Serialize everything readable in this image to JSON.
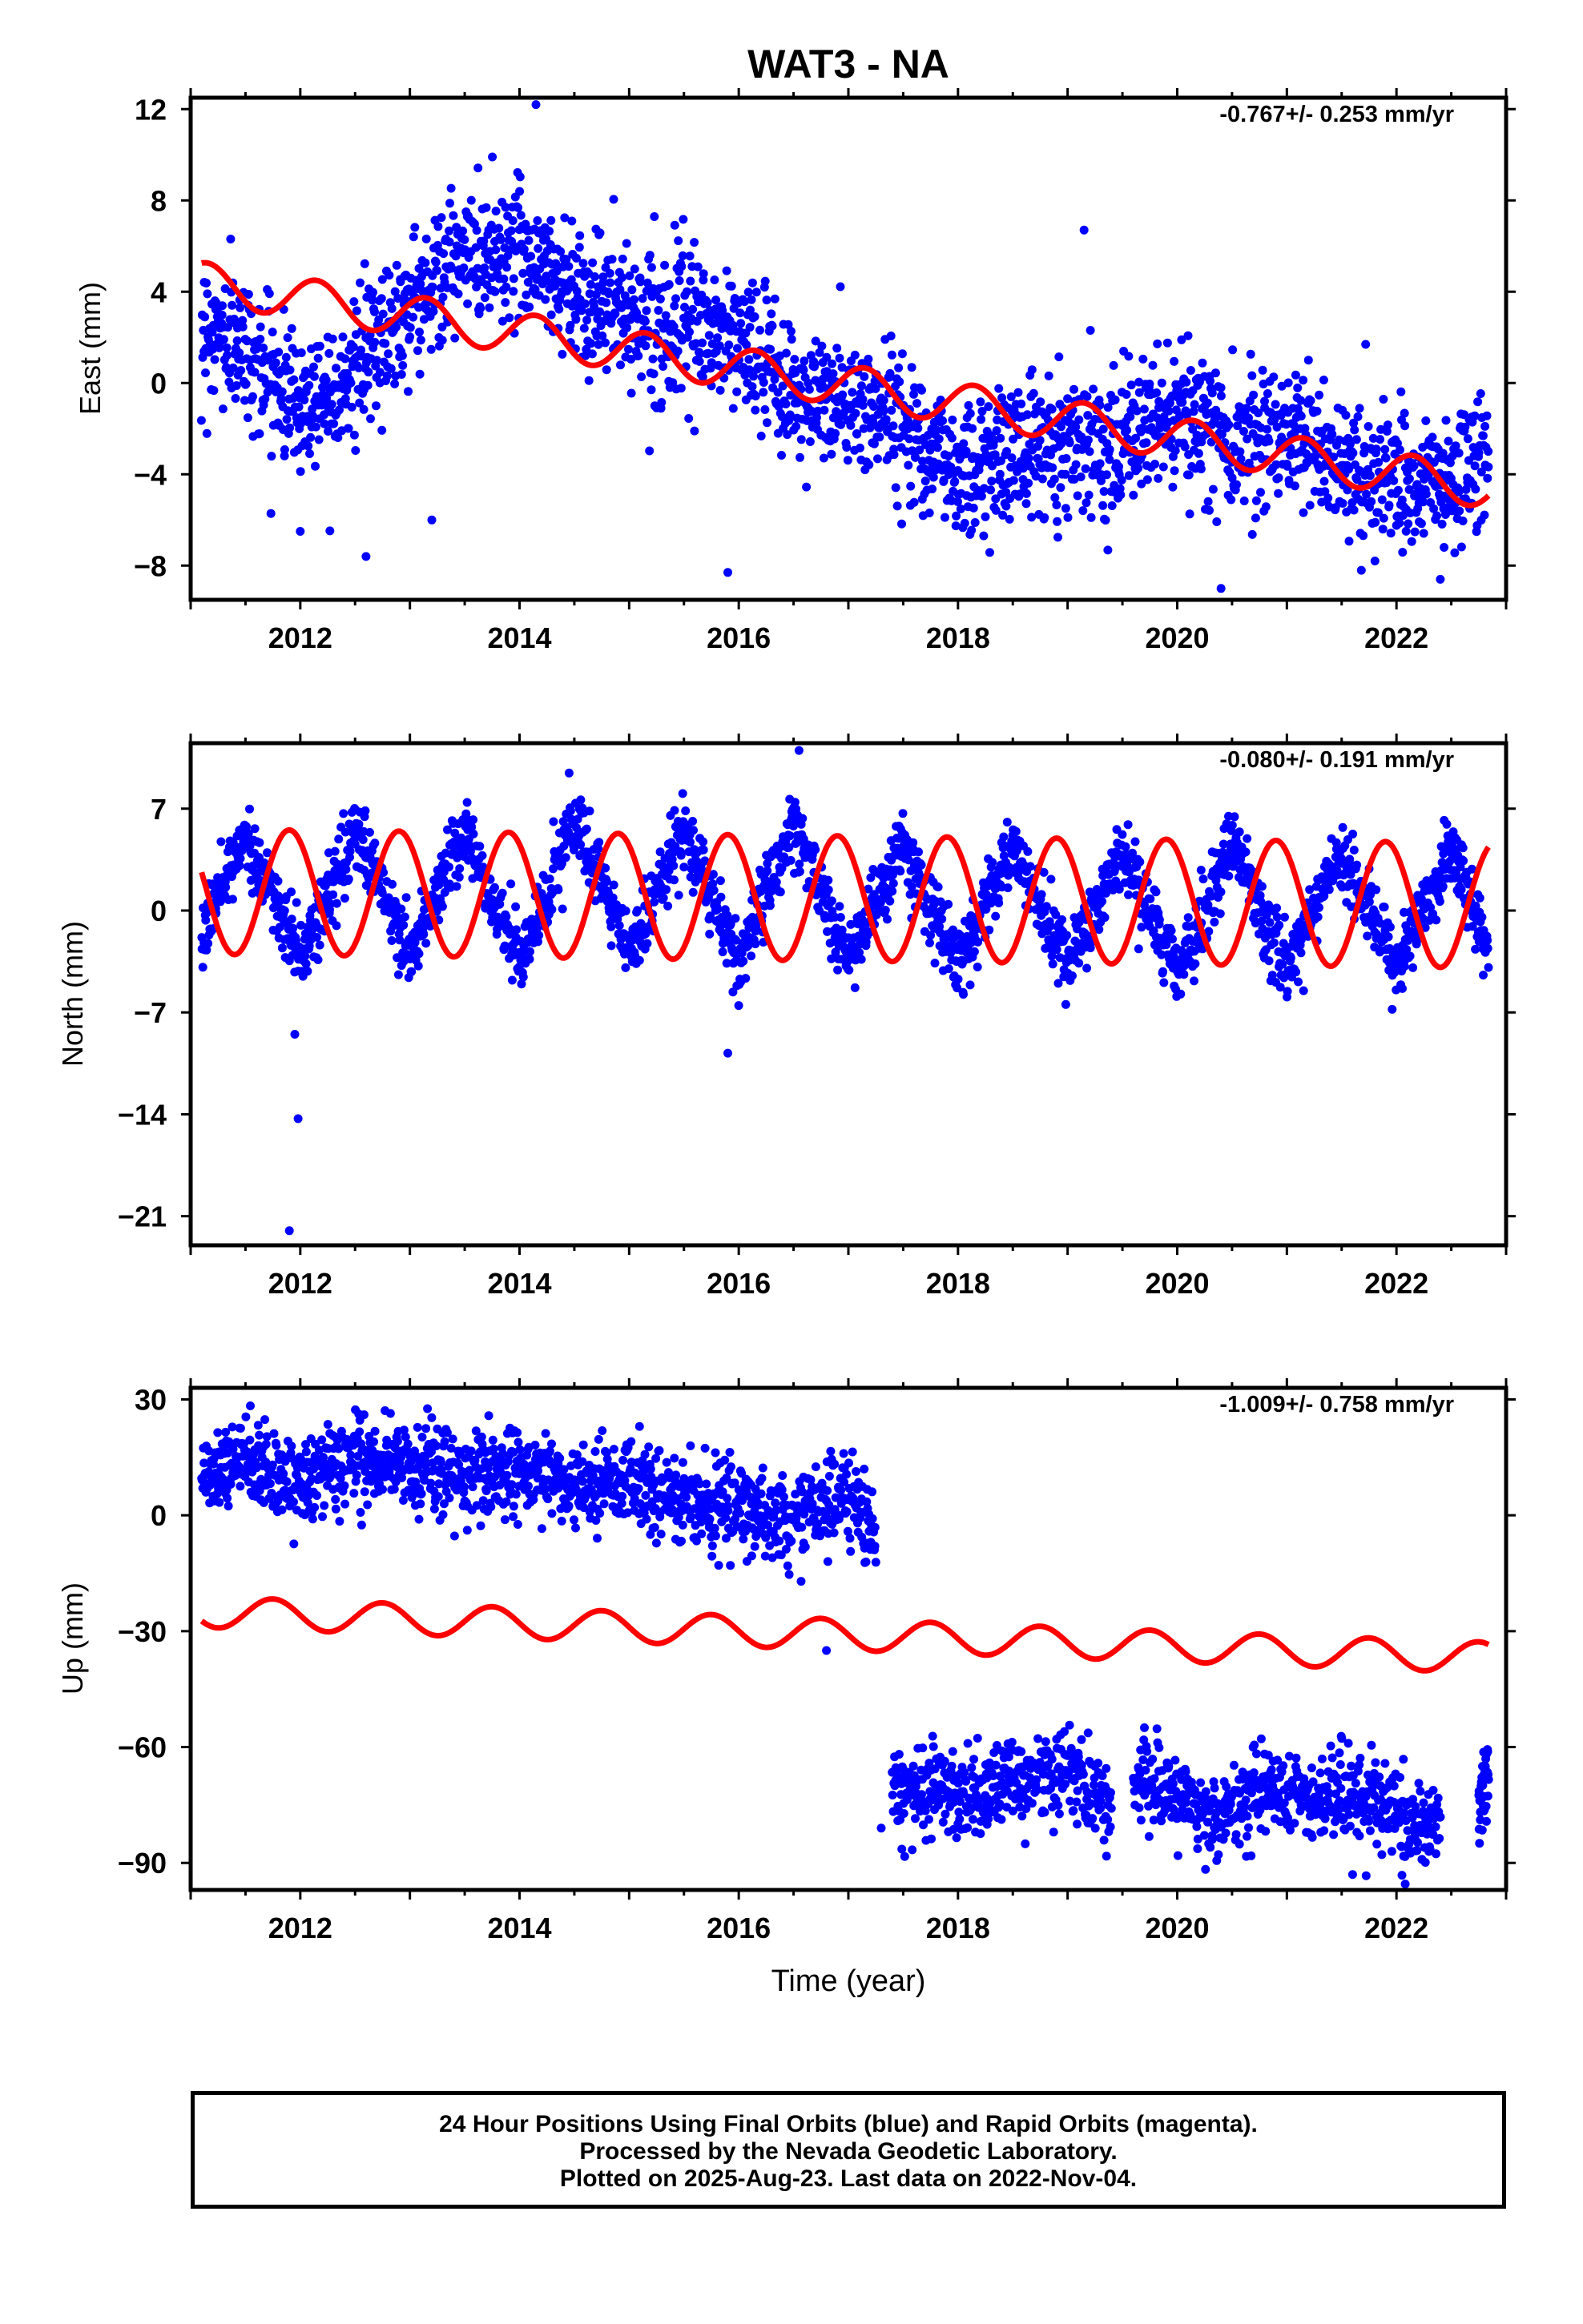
{
  "title": "WAT3 - NA",
  "colors": {
    "final_orbits": "#0000ff",
    "model_fit": "#ff0000",
    "axes": "#000000"
  },
  "caption": {
    "line1": "24 Hour Positions Using Final Orbits (blue) and Rapid Orbits (magenta).",
    "line2": "Processed by the Nevada Geodetic Laboratory.",
    "line3": "Plotted on 2025-Aug-23. Last data on 2022-Nov-04."
  },
  "chart_data": [
    {
      "type": "scatter",
      "id": "east",
      "ylabel": "East (mm)",
      "xlabel": "",
      "xlim": [
        2011.0,
        2023.0
      ],
      "ylim": [
        -9.5,
        12.5
      ],
      "x_ticks": [
        2012,
        2014,
        2016,
        2018,
        2020,
        2022
      ],
      "y_ticks": [
        -8,
        -4,
        0,
        4,
        8,
        12
      ],
      "y_tick_labels": [
        "−8",
        "−4",
        "0",
        "4",
        "8",
        "12"
      ],
      "rate_label": "-0.767+/- 0.253 mm/yr",
      "data_span": [
        2011.1,
        2022.84
      ],
      "breaks": [],
      "model": {
        "intercept": 4.4,
        "rate": -0.767,
        "amplitude": 0.9,
        "phase": 0.2
      },
      "points": {
        "segments": [
          {
            "x": [
              2011.1,
              2011.5,
              2012.0,
              2012.5,
              2013.0,
              2013.5,
              2014.0,
              2014.5,
              2015.0,
              2015.5,
              2016.0,
              2016.5,
              2017.0,
              2017.5,
              2018.0,
              2018.5,
              2019.0,
              2019.5,
              2020.0,
              2020.5,
              2021.0,
              2021.5,
              2022.0,
              2022.5,
              2022.84
            ],
            "y": [
              2.5,
              1.5,
              -1.0,
              0.5,
              3.5,
              5.5,
              6.0,
              4.0,
              3.0,
              2.5,
              2.0,
              -0.5,
              -1.0,
              -1.5,
              -4.0,
              -3.0,
              -2.5,
              -2.5,
              -1.5,
              -2.5,
              -2.0,
              -3.5,
              -4.5,
              -4.5,
              -3.0
            ]
          }
        ],
        "spread": 1.5
      },
      "outliers": [
        [
          2012.0,
          -6.5
        ],
        [
          2012.6,
          -7.6
        ],
        [
          2013.2,
          -6.0
        ],
        [
          2014.15,
          12.2
        ],
        [
          2015.9,
          -8.3
        ],
        [
          2019.15,
          6.7
        ],
        [
          2020.4,
          -9.0
        ],
        [
          2022.4,
          -8.6
        ]
      ]
    },
    {
      "type": "scatter",
      "id": "north",
      "ylabel": "North (mm)",
      "xlabel": "",
      "xlim": [
        2011.0,
        2023.0
      ],
      "ylim": [
        -23.0,
        11.5
      ],
      "x_ticks": [
        2012,
        2014,
        2016,
        2018,
        2020,
        2022
      ],
      "y_ticks": [
        -21,
        -14,
        -7,
        0,
        7
      ],
      "y_tick_labels": [
        "−21",
        "−14",
        "−7",
        "0",
        "7"
      ],
      "rate_label": "-0.080+/- 0.191 mm/yr",
      "data_span": [
        2011.1,
        2022.84
      ],
      "breaks": [],
      "model": {
        "intercept": 1.3,
        "rate": -0.08,
        "amplitude": 4.3,
        "phase": 0.45
      },
      "points": {
        "segments": [
          {
            "x": [
              2011.1,
              2011.5,
              2012.0,
              2012.5,
              2013.0,
              2013.5,
              2014.0,
              2014.5,
              2015.0,
              2015.5,
              2016.0,
              2016.5,
              2017.0,
              2017.5,
              2018.0,
              2018.5,
              2019.0,
              2019.5,
              2020.0,
              2020.5,
              2021.0,
              2021.5,
              2022.0,
              2022.5,
              2022.84
            ],
            "y": [
              -2.0,
              5.5,
              -3.5,
              5.5,
              -3.0,
              5.5,
              -3.5,
              6.0,
              -3.0,
              5.5,
              -3.5,
              6.0,
              -3.5,
              4.5,
              -4.0,
              4.5,
              -4.0,
              4.0,
              -4.5,
              4.5,
              -4.0,
              4.0,
              -3.5,
              4.0,
              -3.0
            ]
          }
        ],
        "spread": 1.2
      },
      "outliers": [
        [
          2011.95,
          -8.5
        ],
        [
          2011.98,
          -14.3
        ],
        [
          2011.9,
          -22.0
        ],
        [
          2015.9,
          -9.8
        ],
        [
          2016.55,
          11.0
        ]
      ]
    },
    {
      "type": "scatter",
      "id": "up",
      "ylabel": "Up (mm)",
      "xlabel": "Time (year)",
      "xlim": [
        2011.0,
        2023.0
      ],
      "ylim": [
        -97.0,
        33.0
      ],
      "x_ticks": [
        2012,
        2014,
        2016,
        2018,
        2020,
        2022
      ],
      "y_ticks": [
        -90,
        -60,
        -30,
        0,
        30
      ],
      "y_tick_labels": [
        "−90",
        "−60",
        "−30",
        "0",
        "30"
      ],
      "rate_label": "-1.009+/- 0.758 mm/yr",
      "data_span": [
        2011.1,
        2022.84
      ],
      "breaks": [
        2016.8
      ],
      "model": {
        "intercept": -25.0,
        "rate": -1.009,
        "amplitude": 4.0,
        "phase": 0.6
      },
      "points": {
        "segments": [
          {
            "x": [
              2011.1,
              2011.5,
              2012.0,
              2012.5,
              2013.0,
              2013.5,
              2014.0,
              2014.5,
              2015.0,
              2015.5,
              2016.0,
              2016.5,
              2017.0,
              2017.25
            ],
            "y": [
              8.0,
              14.0,
              8.0,
              15.0,
              12.0,
              10.0,
              12.0,
              8.0,
              9.0,
              4.0,
              3.0,
              -2.0,
              6.0,
              -5.0
            ]
          },
          {
            "x": [
              2017.4,
              2017.8,
              2018.2,
              2018.6,
              2019.0,
              2019.4
            ],
            "y": [
              -72.0,
              -70.0,
              -73.0,
              -68.0,
              -65.0,
              -75.0
            ]
          },
          {
            "x": [
              2019.6,
              2020.0,
              2020.4,
              2020.8,
              2021.2,
              2021.6,
              2022.0,
              2022.4
            ],
            "y": [
              -68.0,
              -73.0,
              -78.0,
              -70.0,
              -73.0,
              -72.0,
              -78.0,
              -82.0
            ]
          },
          {
            "x": [
              2022.75,
              2022.84
            ],
            "y": [
              -74.0,
              -66.0
            ]
          }
        ],
        "spread": 5.5
      },
      "outliers": [
        [
          2017.3,
          -81.0
        ],
        [
          2019.7,
          -55.0
        ],
        [
          2021.6,
          -93.0
        ],
        [
          2016.8,
          -35.0
        ]
      ]
    }
  ]
}
